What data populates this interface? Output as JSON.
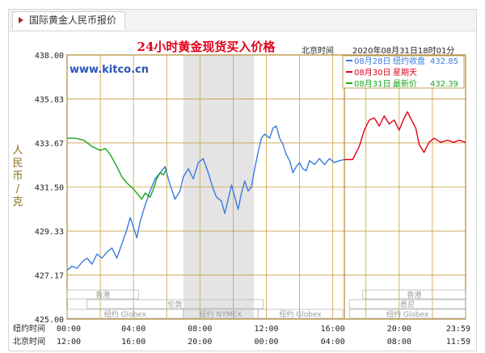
{
  "tab": {
    "label": "国际黄金人民币报价"
  },
  "header": {
    "title": "24小时黄金现货买入价格",
    "timezone_label": "北京时间",
    "datetime": "2020年08月31日18时01分"
  },
  "watermark": "www.kitco.cn",
  "legend": [
    {
      "date": "08月28日",
      "label": "纽约收盘",
      "value": "432.85",
      "color": "#3a7be0"
    },
    {
      "date": "08月30日",
      "label": "星期天",
      "value": "",
      "color": "#e0001a"
    },
    {
      "date": "08月31日",
      "label": "最新价",
      "value": "432.39",
      "color": "#1aa61a"
    }
  ],
  "y_axis_label": "人民币/克",
  "bottom_axis": {
    "ny_label": "纽约时间",
    "bj_label": "北京时间",
    "ny_ticks": [
      "00:00",
      "04:00",
      "08:00",
      "12:00",
      "16:00",
      "20:00",
      "23:59"
    ],
    "bj_ticks": [
      "12:00",
      "16:00",
      "20:00",
      "00:00",
      "04:00",
      "08:00",
      "11:59"
    ]
  },
  "markets": {
    "row1": [
      "香港",
      "香港"
    ],
    "row2": [
      "伦敦",
      "悉尼"
    ],
    "row3": [
      "纽约 Globex",
      "纽约 NYMEX",
      "纽约 Globex",
      "纽约 Globex"
    ]
  },
  "colors": {
    "grid": "#c8a040",
    "border": "#b08830",
    "shade": "#e4e4e4",
    "blue": "#3a7be0",
    "red": "#e0001a",
    "green": "#1aa61a"
  },
  "chart_data": {
    "type": "line",
    "title": "24小时黄金现货买入价格",
    "ylabel": "人民币/克",
    "ylim": [
      425.0,
      438.0
    ],
    "y_ticks": [
      425.0,
      427.17,
      429.33,
      431.5,
      433.67,
      435.83,
      438.0
    ],
    "x_axis": "hours from 00:00 New York time",
    "xlim": [
      0,
      24
    ],
    "x_tick_labels": [
      "00:00",
      "04:00",
      "08:00",
      "12:00",
      "16:00",
      "20:00",
      "23:59"
    ],
    "shaded_region_hours": [
      7.0,
      11.25
    ],
    "grid": true,
    "series": [
      {
        "name": "08月28日 纽约收盘 432.85",
        "color": "#3a7be0",
        "points": [
          [
            0.0,
            427.4
          ],
          [
            0.3,
            427.6
          ],
          [
            0.6,
            427.5
          ],
          [
            0.9,
            427.8
          ],
          [
            1.2,
            428.0
          ],
          [
            1.5,
            427.7
          ],
          [
            1.8,
            428.2
          ],
          [
            2.1,
            428.0
          ],
          [
            2.4,
            428.3
          ],
          [
            2.7,
            428.5
          ],
          [
            3.0,
            428.0
          ],
          [
            3.3,
            428.7
          ],
          [
            3.6,
            429.4
          ],
          [
            3.8,
            430.0
          ],
          [
            4.0,
            429.5
          ],
          [
            4.2,
            429.0
          ],
          [
            4.4,
            429.8
          ],
          [
            4.7,
            430.6
          ],
          [
            5.0,
            431.3
          ],
          [
            5.3,
            431.9
          ],
          [
            5.6,
            432.2
          ],
          [
            5.9,
            432.5
          ],
          [
            6.2,
            431.6
          ],
          [
            6.5,
            430.9
          ],
          [
            6.8,
            431.3
          ],
          [
            7.0,
            432.0
          ],
          [
            7.3,
            432.4
          ],
          [
            7.6,
            431.9
          ],
          [
            7.9,
            432.7
          ],
          [
            8.2,
            432.9
          ],
          [
            8.5,
            432.2
          ],
          [
            8.8,
            431.4
          ],
          [
            9.0,
            431.0
          ],
          [
            9.3,
            430.8
          ],
          [
            9.5,
            430.2
          ],
          [
            9.7,
            430.9
          ],
          [
            9.9,
            431.6
          ],
          [
            10.1,
            431.0
          ],
          [
            10.3,
            430.4
          ],
          [
            10.5,
            431.2
          ],
          [
            10.7,
            431.8
          ],
          [
            10.9,
            431.3
          ],
          [
            11.1,
            431.5
          ],
          [
            11.3,
            432.4
          ],
          [
            11.5,
            433.2
          ],
          [
            11.7,
            433.9
          ],
          [
            11.9,
            434.1
          ],
          [
            12.2,
            433.9
          ],
          [
            12.4,
            434.4
          ],
          [
            12.6,
            434.5
          ],
          [
            12.8,
            433.9
          ],
          [
            13.0,
            433.6
          ],
          [
            13.2,
            433.1
          ],
          [
            13.4,
            432.8
          ],
          [
            13.6,
            432.2
          ],
          [
            13.8,
            432.5
          ],
          [
            14.0,
            432.7
          ],
          [
            14.2,
            432.4
          ],
          [
            14.4,
            432.3
          ],
          [
            14.6,
            432.8
          ],
          [
            14.9,
            432.6
          ],
          [
            15.2,
            432.9
          ],
          [
            15.5,
            432.6
          ],
          [
            15.8,
            432.9
          ],
          [
            16.1,
            432.7
          ],
          [
            16.4,
            432.8
          ],
          [
            16.7,
            432.85
          ]
        ]
      },
      {
        "name": "08月30日 星期天",
        "color": "#e0001a",
        "points": [
          [
            16.7,
            432.85
          ],
          [
            17.2,
            432.85
          ],
          [
            17.6,
            433.5
          ],
          [
            17.9,
            434.3
          ],
          [
            18.2,
            434.8
          ],
          [
            18.5,
            434.9
          ],
          [
            18.8,
            434.5
          ],
          [
            19.1,
            435.0
          ],
          [
            19.4,
            434.6
          ],
          [
            19.7,
            434.8
          ],
          [
            20.0,
            434.3
          ],
          [
            20.3,
            434.9
          ],
          [
            20.5,
            435.2
          ],
          [
            20.8,
            434.7
          ],
          [
            21.0,
            434.4
          ],
          [
            21.2,
            433.6
          ],
          [
            21.5,
            433.2
          ],
          [
            21.8,
            433.7
          ],
          [
            22.1,
            433.9
          ],
          [
            22.5,
            433.7
          ],
          [
            22.9,
            433.8
          ],
          [
            23.3,
            433.7
          ],
          [
            23.6,
            433.8
          ],
          [
            24.0,
            433.7
          ]
        ]
      },
      {
        "name": "08月31日 最新价 432.39",
        "color": "#1aa61a",
        "points": [
          [
            0.0,
            433.9
          ],
          [
            0.5,
            433.9
          ],
          [
            1.0,
            433.8
          ],
          [
            1.5,
            433.5
          ],
          [
            2.0,
            433.3
          ],
          [
            2.3,
            433.4
          ],
          [
            2.6,
            433.1
          ],
          [
            3.0,
            432.5
          ],
          [
            3.3,
            432.0
          ],
          [
            3.6,
            431.7
          ],
          [
            4.0,
            431.4
          ],
          [
            4.3,
            431.1
          ],
          [
            4.5,
            430.9
          ],
          [
            4.7,
            431.2
          ],
          [
            5.0,
            431.0
          ],
          [
            5.2,
            431.4
          ],
          [
            5.4,
            431.9
          ],
          [
            5.6,
            432.2
          ],
          [
            5.8,
            432.1
          ],
          [
            6.0,
            432.39
          ]
        ]
      }
    ]
  }
}
